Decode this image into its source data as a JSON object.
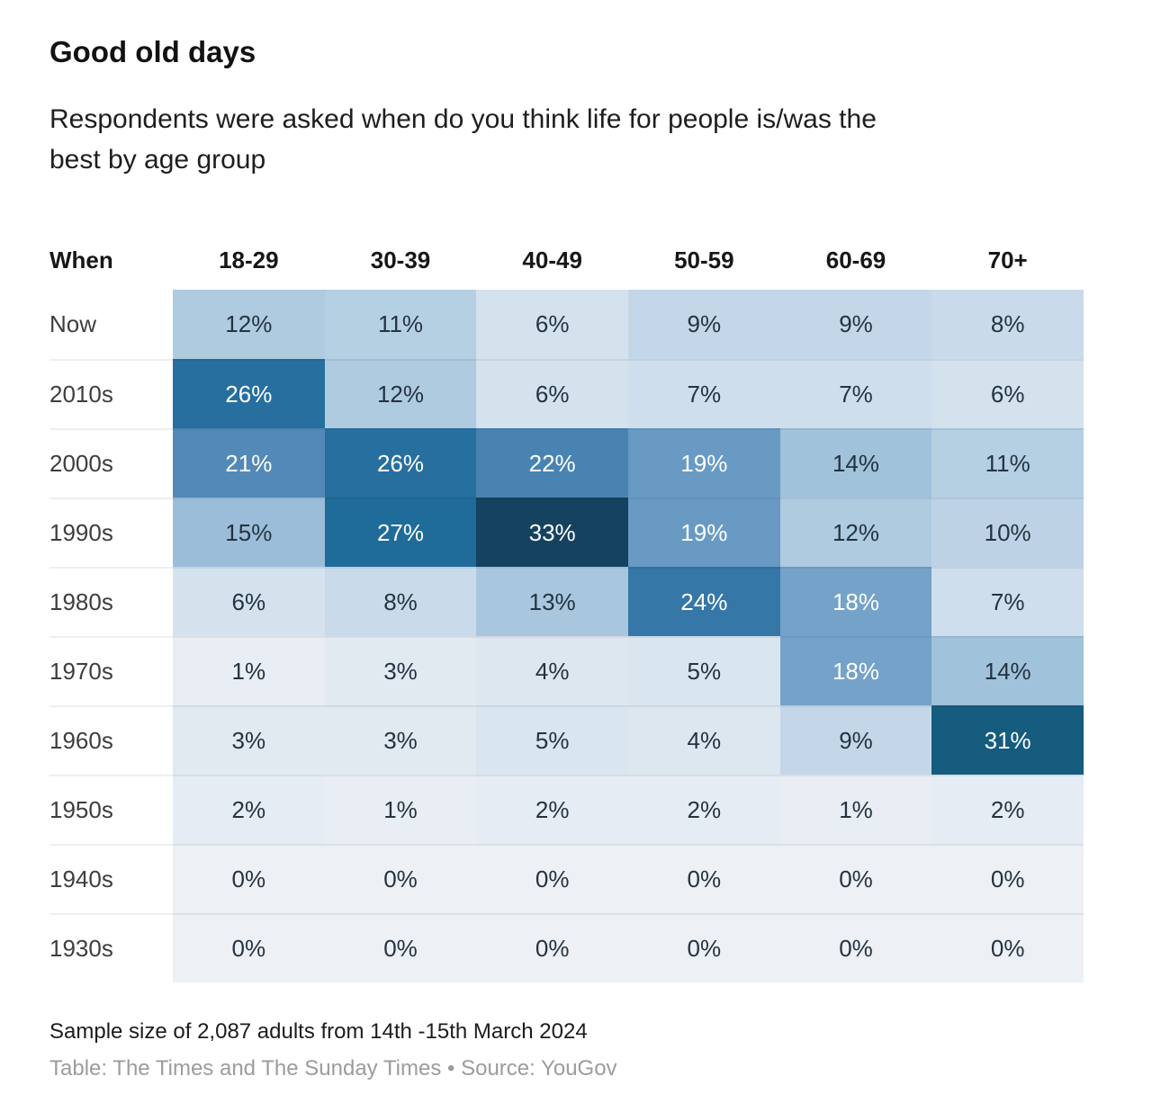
{
  "header": {
    "title": "Good old days",
    "subtitle_line1": "Respondents were asked when do you think life for people is/was the",
    "subtitle_line2": "best by age group"
  },
  "footer": {
    "sample_note": "Sample size of 2,087 adults from 14th -15th March 2024",
    "attribution": "Table: The Times and The Sunday Times • Source: YouGov"
  },
  "chart_data": {
    "type": "heatmap",
    "title": "Good old days",
    "subtitle": "Respondents were asked when do you think life for people is/was the best by age group",
    "row_header": "When",
    "columns": [
      "18-29",
      "30-39",
      "40-49",
      "50-59",
      "60-69",
      "70+"
    ],
    "rows": [
      {
        "label": "Now",
        "values": [
          12,
          11,
          6,
          9,
          9,
          8
        ]
      },
      {
        "label": "2010s",
        "values": [
          26,
          12,
          6,
          7,
          7,
          6
        ]
      },
      {
        "label": "2000s",
        "values": [
          21,
          26,
          22,
          19,
          14,
          11
        ]
      },
      {
        "label": "1990s",
        "values": [
          15,
          27,
          33,
          19,
          12,
          10
        ]
      },
      {
        "label": "1980s",
        "values": [
          6,
          8,
          13,
          24,
          18,
          7
        ]
      },
      {
        "label": "1970s",
        "values": [
          1,
          3,
          4,
          5,
          18,
          14
        ]
      },
      {
        "label": "1960s",
        "values": [
          3,
          3,
          5,
          4,
          9,
          31
        ]
      },
      {
        "label": "1950s",
        "values": [
          2,
          1,
          2,
          2,
          1,
          2
        ]
      },
      {
        "label": "1940s",
        "values": [
          0,
          0,
          0,
          0,
          0,
          0
        ]
      },
      {
        "label": "1930s",
        "values": [
          0,
          0,
          0,
          0,
          0,
          0
        ]
      }
    ],
    "value_suffix": "%",
    "value_range": [
      0,
      33
    ],
    "legend": "none",
    "grid": "row separators only",
    "color_scale": {
      "stops": [
        [
          0,
          "#edf0f5"
        ],
        [
          5,
          "#d9e5ef"
        ],
        [
          9,
          "#c4d7e8"
        ],
        [
          12,
          "#aecbe0"
        ],
        [
          15,
          "#9bbdd9"
        ],
        [
          18,
          "#74a2c9"
        ],
        [
          21,
          "#5289b7"
        ],
        [
          24,
          "#3577a7"
        ],
        [
          27,
          "#1f6b99"
        ],
        [
          31,
          "#155c7f"
        ],
        [
          33,
          "#15425f"
        ]
      ],
      "white_text_threshold": 18,
      "dark_text_color": "#243340",
      "white_text_color": "#ffffff"
    }
  }
}
